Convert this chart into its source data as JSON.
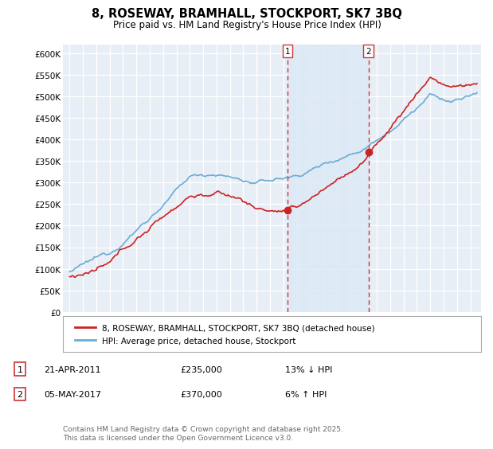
{
  "title_line1": "8, ROSEWAY, BRAMHALL, STOCKPORT, SK7 3BQ",
  "title_line2": "Price paid vs. HM Land Registry's House Price Index (HPI)",
  "ylim": [
    0,
    620000
  ],
  "yticks": [
    0,
    50000,
    100000,
    150000,
    200000,
    250000,
    300000,
    350000,
    400000,
    450000,
    500000,
    550000,
    600000
  ],
  "ytick_labels": [
    "£0",
    "£50K",
    "£100K",
    "£150K",
    "£200K",
    "£250K",
    "£300K",
    "£350K",
    "£400K",
    "£450K",
    "£500K",
    "£550K",
    "£600K"
  ],
  "hpi_color": "#6aacd4",
  "hpi_fill_color": "#dce9f5",
  "price_color": "#cc2222",
  "vline_color": "#cc3333",
  "sale1_x": 2011.31,
  "sale1_price": 235000,
  "sale1_label": "1",
  "sale2_x": 2017.37,
  "sale2_price": 370000,
  "sale2_label": "2",
  "legend_house": "8, ROSEWAY, BRAMHALL, STOCKPORT, SK7 3BQ (detached house)",
  "legend_hpi": "HPI: Average price, detached house, Stockport",
  "note1_label": "1",
  "note1_date": "21-APR-2011",
  "note1_price": "£235,000",
  "note1_hpi": "13% ↓ HPI",
  "note2_label": "2",
  "note2_date": "05-MAY-2017",
  "note2_price": "£370,000",
  "note2_hpi": "6% ↑ HPI",
  "copyright": "Contains HM Land Registry data © Crown copyright and database right 2025.\nThis data is licensed under the Open Government Licence v3.0.",
  "background_color": "#ffffff",
  "plot_bg_color": "#e8eef5",
  "grid_color": "#ffffff",
  "xmin": 1994.5,
  "xmax": 2025.8
}
